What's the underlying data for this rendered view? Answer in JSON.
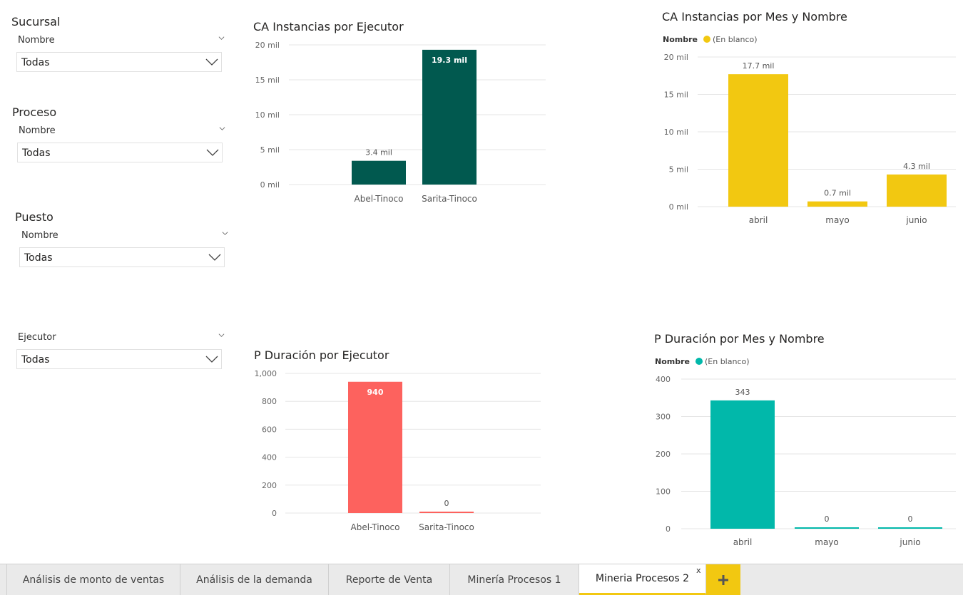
{
  "slicers": [
    {
      "title": "Sucursal",
      "field": "Nombre",
      "value": "Todas"
    },
    {
      "title": "Proceso",
      "field": "Nombre",
      "value": "Todas"
    },
    {
      "title": "Puesto",
      "field": "Nombre",
      "value": "Todas"
    },
    {
      "title": "",
      "field": "Ejecutor",
      "value": "Todas"
    }
  ],
  "chart_data": [
    {
      "id": "ca-ejecutor",
      "type": "bar",
      "title": "CA Instancias por Ejecutor",
      "categories": [
        "Abel-Tinoco",
        "Sarita-Tinoco"
      ],
      "values": [
        3400,
        19300
      ],
      "data_labels": [
        "3.4 mil",
        "19.3 mil"
      ],
      "yticks": [
        "0 mil",
        "5 mil",
        "10 mil",
        "15 mil",
        "20 mil"
      ],
      "ylim": [
        0,
        20000
      ],
      "color": "#01594f",
      "grid": true
    },
    {
      "id": "ca-mes",
      "type": "bar",
      "title": "CA Instancias por Mes y Nombre",
      "legend_title": "Nombre",
      "series": [
        {
          "name": "(En blanco)",
          "values": [
            17700,
            700,
            4300
          ]
        }
      ],
      "categories": [
        "abril",
        "mayo",
        "junio"
      ],
      "data_labels": [
        "17.7 mil",
        "0.7 mil",
        "4.3 mil"
      ],
      "yticks": [
        "0 mil",
        "5 mil",
        "10 mil",
        "15 mil",
        "20 mil"
      ],
      "ylim": [
        0,
        20000
      ],
      "color": "#f2c811",
      "legend_position": "top-left",
      "grid": true
    },
    {
      "id": "p-ejecutor",
      "type": "bar",
      "title": "P Duración por Ejecutor",
      "categories": [
        "Abel-Tinoco",
        "Sarita-Tinoco"
      ],
      "values": [
        940,
        0
      ],
      "data_labels": [
        "940",
        "0"
      ],
      "yticks": [
        "0",
        "200",
        "400",
        "600",
        "800",
        "1,000"
      ],
      "ylim": [
        0,
        1000
      ],
      "color": "#fd625e",
      "grid": true
    },
    {
      "id": "p-mes",
      "type": "bar",
      "title": "P Duración por Mes y Nombre",
      "legend_title": "Nombre",
      "series": [
        {
          "name": "(En blanco)",
          "values": [
            343,
            0,
            0
          ]
        }
      ],
      "categories": [
        "abril",
        "mayo",
        "junio"
      ],
      "data_labels": [
        "343",
        "0",
        "0"
      ],
      "yticks": [
        "0",
        "100",
        "200",
        "300",
        "400"
      ],
      "ylim": [
        0,
        400
      ],
      "color": "#01b8aa",
      "legend_position": "top-left",
      "grid": true
    }
  ],
  "tabs": [
    {
      "label": "Análisis de monto de ventas",
      "active": false
    },
    {
      "label": "Análisis de la demanda",
      "active": false
    },
    {
      "label": "Reporte de Venta",
      "active": false
    },
    {
      "label": "Minería Procesos 1",
      "active": false
    },
    {
      "label": "Mineria Procesos 2",
      "active": true
    }
  ],
  "tab_close": "x",
  "add_tab_icon": "plus-icon"
}
